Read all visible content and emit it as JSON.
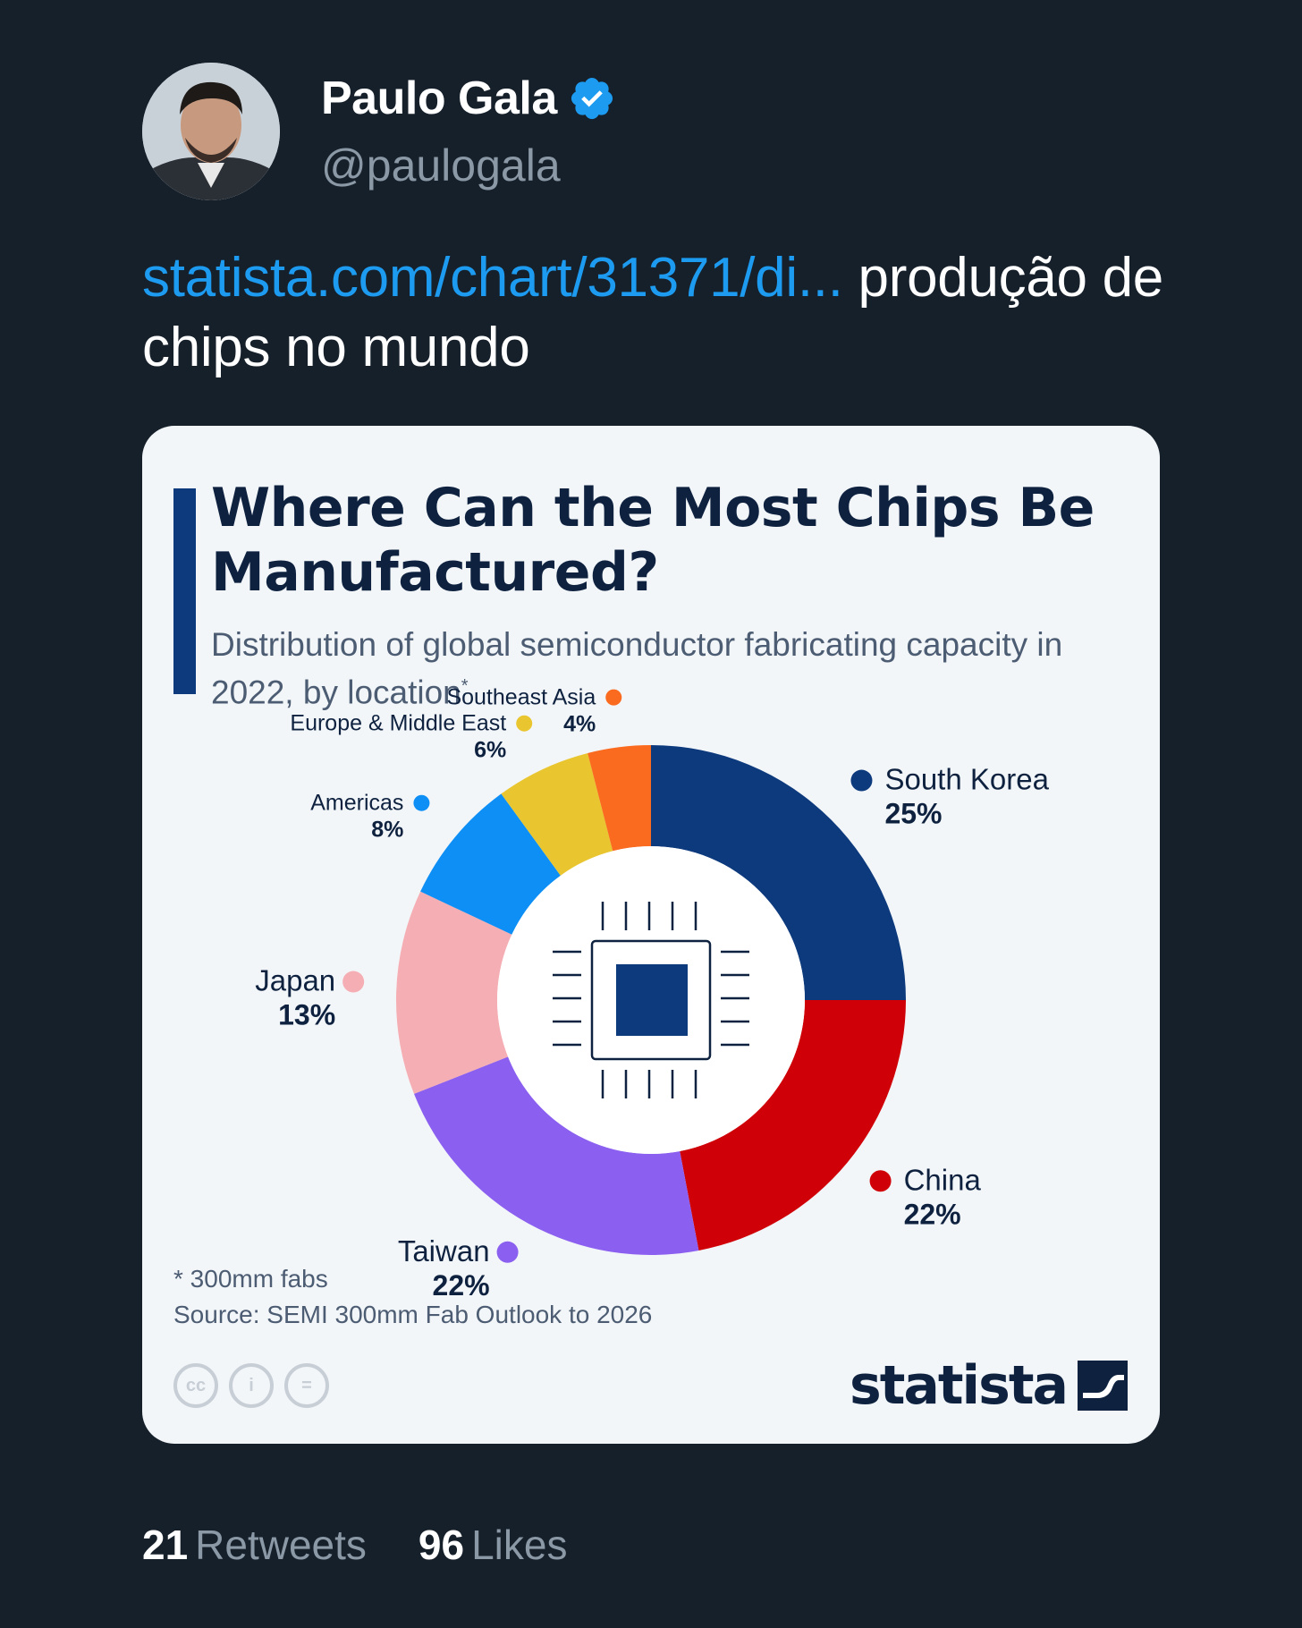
{
  "tweet": {
    "author_name": "Paulo Gala",
    "author_handle": "@paulogala",
    "link_text": "statista.com/chart/31371/di...",
    "text": " produção de chips no mundo",
    "retweets_count": "21",
    "retweets_label": "Retweets",
    "likes_count": "96",
    "likes_label": "Likes"
  },
  "card": {
    "footnote": "* 300mm fabs",
    "source": "Source: SEMI 300mm Fab Outlook to 2026",
    "brand": "statista",
    "license_icons": [
      "cc",
      "i",
      "="
    ]
  },
  "colors": {
    "accent_link": "#1d9bf0",
    "verified": "#1d9bf0"
  },
  "chart_data": {
    "type": "pie",
    "variant": "donut",
    "title": "Where Can the Most Chips Be Manufactured?",
    "subtitle": "Distribution of global semiconductor fabricating capacity in 2022, by location",
    "subtitle_mark": "*",
    "unit": "%",
    "slices": [
      {
        "label": "South Korea",
        "value": 25,
        "color": "#0d3a7d"
      },
      {
        "label": "China",
        "value": 22,
        "color": "#cf0007"
      },
      {
        "label": "Taiwan",
        "value": 22,
        "color": "#8b5ff0"
      },
      {
        "label": "Japan",
        "value": 13,
        "color": "#f5aeb3"
      },
      {
        "label": "Americas",
        "value": 8,
        "color": "#0d8ff5"
      },
      {
        "label": "Europe & Middle East",
        "value": 6,
        "color": "#e9c62f"
      },
      {
        "label": "Southeast Asia",
        "value": 4,
        "color": "#fa6b1f"
      }
    ]
  }
}
